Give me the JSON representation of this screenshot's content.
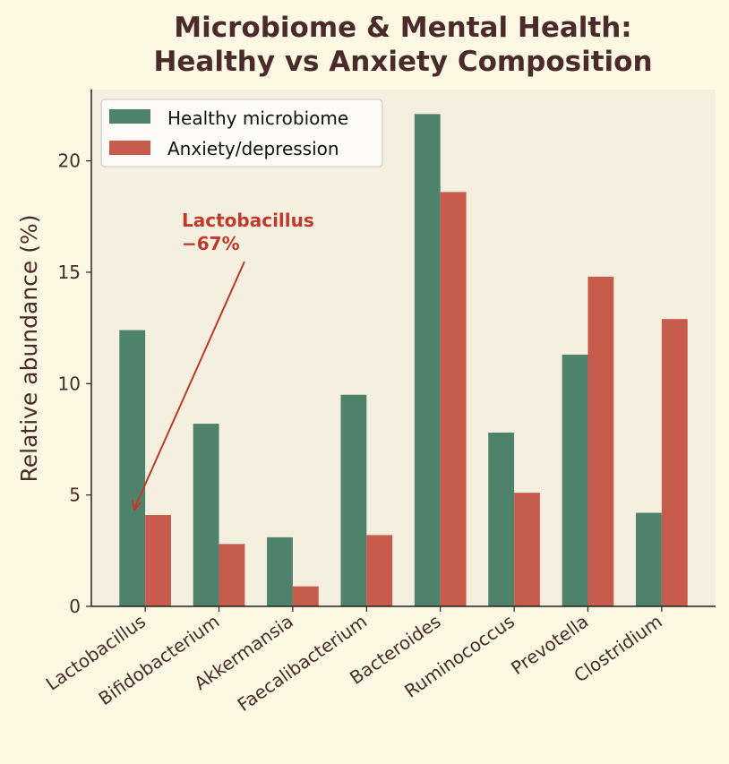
{
  "chart_data": {
    "type": "bar",
    "title": "Microbiome & Mental Health:\nHealthy vs Anxiety Composition",
    "title_lines": [
      "Microbiome & Mental Health:",
      "Healthy vs Anxiety Composition"
    ],
    "xlabel": "",
    "ylabel": "Relative abundance (%)",
    "ylim": [
      0,
      23.2
    ],
    "yticks": [
      0,
      5,
      10,
      15,
      20
    ],
    "grid": false,
    "legend_placement": "top-left",
    "categories": [
      "Lactobacillus",
      "Bifidobacterium",
      "Akkermansia",
      "Faecalibacterium",
      "Bacteroides",
      "Ruminococcus",
      "Prevotella",
      "Clostridium"
    ],
    "series": [
      {
        "name": "Healthy microbiome",
        "color": "#4f826a",
        "values": [
          12.4,
          8.2,
          3.1,
          9.5,
          22.1,
          7.8,
          11.3,
          4.2
        ]
      },
      {
        "name": "Anxiety/depression",
        "color": "#c75b4c",
        "values": [
          4.1,
          2.8,
          0.9,
          3.2,
          18.6,
          5.1,
          14.8,
          12.9
        ]
      }
    ],
    "annotation": {
      "lines": [
        "Lactobacillus",
        "−67%"
      ],
      "color": "#c0392b",
      "points_to": {
        "category": "Lactobacillus",
        "value": 4.3
      }
    }
  },
  "colors": {
    "background": "#fdf8e1",
    "plot_background": "#f5efe0",
    "text": "#4a2a2a"
  }
}
